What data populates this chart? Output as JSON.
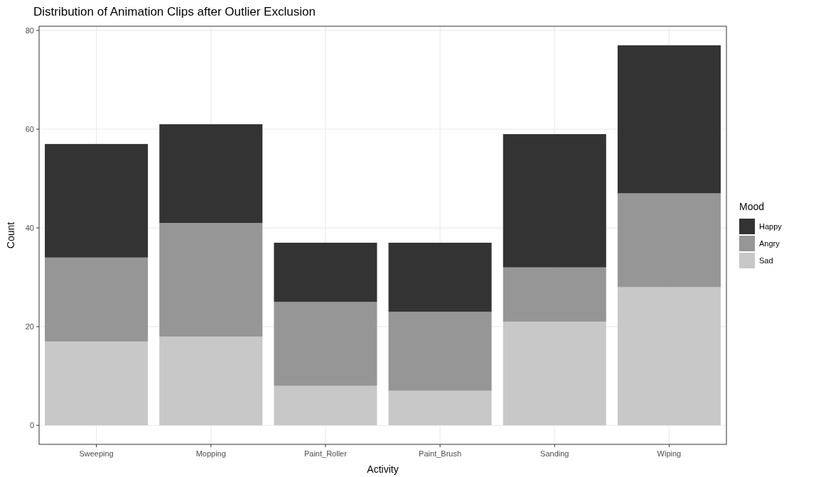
{
  "chart_data": {
    "type": "bar",
    "title": "Distribution of Animation Clips after Outlier Exclusion",
    "xlabel": "Activity",
    "ylabel": "Count",
    "legend_title": "Mood",
    "categories": [
      "Sweeping",
      "Mopping",
      "Paint_Roller",
      "Paint_Brush",
      "Sanding",
      "Wiping"
    ],
    "stacked": true,
    "series": [
      {
        "name": "Sad",
        "color": "#c8c8c8",
        "values": [
          17,
          18,
          8,
          7,
          21,
          28
        ]
      },
      {
        "name": "Angry",
        "color": "#969696",
        "values": [
          17,
          23,
          17,
          16,
          11,
          19
        ]
      },
      {
        "name": "Happy",
        "color": "#333333",
        "values": [
          23,
          20,
          12,
          14,
          27,
          30
        ]
      }
    ],
    "ylim": [
      -3.85,
      80.85
    ],
    "yticks": [
      0,
      20,
      40,
      60,
      80
    ],
    "grid": true,
    "legend": "right"
  }
}
